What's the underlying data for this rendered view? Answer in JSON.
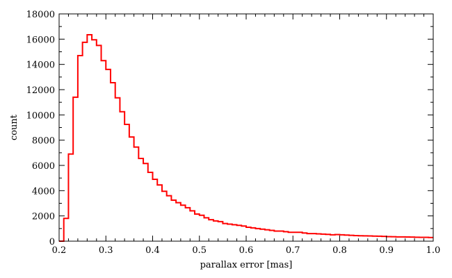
{
  "chart_data": {
    "type": "histogram-step",
    "title": "",
    "xlabel": "parallax error [mas]",
    "ylabel": "count",
    "xlim": [
      0.2,
      1.0
    ],
    "ylim": [
      0,
      18000
    ],
    "x_ticks": [
      0.2,
      0.3,
      0.4,
      0.5,
      0.6,
      0.7,
      0.8,
      0.9,
      1.0
    ],
    "x_tick_labels": [
      "0.2",
      "0.3",
      "0.4",
      "0.5",
      "0.6",
      "0.7",
      "0.8",
      "0.9",
      "1.0"
    ],
    "y_ticks": [
      0,
      2000,
      4000,
      6000,
      8000,
      10000,
      12000,
      14000,
      16000,
      18000
    ],
    "y_tick_labels": [
      "0",
      "2000",
      "4000",
      "6000",
      "8000",
      "10000",
      "12000",
      "14000",
      "16000",
      "18000"
    ],
    "grid": false,
    "series": [
      {
        "color": "#ff0000",
        "bin_start": 0.2,
        "bin_width": 0.01,
        "values": [
          0,
          1800,
          6900,
          11400,
          14700,
          15750,
          16350,
          15950,
          15500,
          14300,
          13600,
          12550,
          11350,
          10250,
          9250,
          8250,
          7450,
          6550,
          6150,
          5450,
          4900,
          4450,
          3950,
          3600,
          3250,
          3050,
          2850,
          2650,
          2400,
          2150,
          2050,
          1850,
          1700,
          1600,
          1550,
          1400,
          1350,
          1300,
          1250,
          1200,
          1100,
          1050,
          1000,
          950,
          900,
          850,
          800,
          800,
          750,
          700,
          700,
          700,
          650,
          600,
          600,
          580,
          560,
          540,
          500,
          520,
          500,
          480,
          460,
          440,
          430,
          420,
          410,
          400,
          390,
          380,
          360,
          350,
          340,
          340,
          330,
          320,
          310,
          300,
          300,
          290
        ]
      }
    ]
  }
}
